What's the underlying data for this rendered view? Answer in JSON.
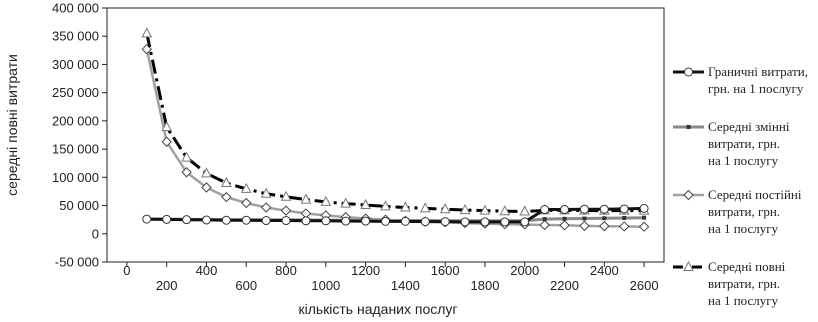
{
  "chart_data": {
    "type": "line",
    "title": "",
    "xlabel": "кількість наданих послуг",
    "ylabel": "середні повні витрати",
    "xlim": [
      -100,
      2700
    ],
    "ylim": [
      -50000,
      400000
    ],
    "x_ticks": [
      0,
      200,
      400,
      600,
      800,
      1000,
      1200,
      1400,
      1600,
      1800,
      2000,
      2200,
      2400,
      2600
    ],
    "x_tick_labels": [
      "0",
      "200",
      "400",
      "600",
      "800",
      "1000",
      "1200",
      "1400",
      "1600",
      "1800",
      "2000",
      "2200",
      "2400",
      "2600"
    ],
    "y_ticks": [
      -50000,
      0,
      50000,
      100000,
      150000,
      200000,
      250000,
      300000,
      350000,
      400000
    ],
    "y_tick_labels": [
      "-50 000",
      "0",
      "50 000",
      "100 000",
      "150 000",
      "200 000",
      "250 000",
      "300 000",
      "350 000",
      "400 000"
    ],
    "grid": false,
    "legend_position": "right",
    "series": [
      {
        "name": "Граничні витрати, грн. на 1 послугу",
        "style": "marginal",
        "x": [
          100,
          200,
          300,
          400,
          500,
          600,
          700,
          800,
          900,
          1000,
          1100,
          1200,
          1300,
          1400,
          1500,
          1600,
          1700,
          1800,
          1900,
          2000,
          2100,
          2200,
          2300,
          2400,
          2500,
          2600
        ],
        "y": [
          26000,
          25500,
          25000,
          24500,
          24000,
          24000,
          23500,
          23500,
          23000,
          23000,
          22500,
          22500,
          22000,
          22000,
          21500,
          21500,
          21000,
          21000,
          21000,
          21000,
          43000,
          43000,
          43500,
          43500,
          44000,
          45000
        ]
      },
      {
        "name": "Середні змінні витрати, грн. на 1 послугу",
        "style": "variable",
        "x": [
          100,
          200,
          300,
          400,
          500,
          600,
          700,
          800,
          900,
          1000,
          1100,
          1200,
          1300,
          1400,
          1500,
          1600,
          1700,
          1800,
          1900,
          2000,
          2100,
          2200,
          2300,
          2400,
          2500,
          2600
        ],
        "y": [
          26000,
          26000,
          25500,
          25500,
          25000,
          25000,
          24500,
          24500,
          24500,
          24000,
          24000,
          24000,
          23500,
          23500,
          23500,
          23000,
          23000,
          23000,
          23000,
          23000,
          26000,
          26500,
          27000,
          27500,
          28000,
          28500
        ]
      },
      {
        "name": "Середні постійні витрати, грн. на 1 послугу",
        "style": "fixed",
        "x": [
          100,
          200,
          300,
          400,
          500,
          600,
          700,
          800,
          900,
          1000,
          1100,
          1200,
          1300,
          1400,
          1500,
          1600,
          1700,
          1800,
          1900,
          2000,
          2100,
          2200,
          2300,
          2400,
          2500,
          2600
        ],
        "y": [
          327000,
          163000,
          109000,
          82000,
          65000,
          54500,
          46500,
          41000,
          36000,
          32500,
          29500,
          27000,
          25000,
          23000,
          21500,
          20500,
          19000,
          18000,
          17000,
          16500,
          15500,
          15000,
          14000,
          13500,
          13000,
          12500
        ]
      },
      {
        "name": "Середні повні витрати, грн. на 1 послугу",
        "style": "total",
        "x": [
          100,
          200,
          300,
          400,
          500,
          600,
          700,
          800,
          900,
          1000,
          1100,
          1200,
          1300,
          1400,
          1500,
          1600,
          1700,
          1800,
          1900,
          2000,
          2100,
          2200,
          2300,
          2400,
          2500,
          2600
        ],
        "y": [
          355000,
          189000,
          135000,
          107000,
          90000,
          79500,
          71000,
          65500,
          60500,
          56500,
          53500,
          51000,
          48500,
          46500,
          45000,
          43500,
          42000,
          41000,
          40000,
          39500,
          41500,
          41500,
          41000,
          41000,
          41000,
          41000
        ]
      }
    ],
    "legend": [
      {
        "lines": [
          "Граничні витрати,",
          "грн. на 1 послугу"
        ],
        "style": "marginal"
      },
      {
        "lines": [
          "Середні змінні",
          "витрати, грн.",
          "на 1 послугу"
        ],
        "style": "variable"
      },
      {
        "lines": [
          "Середні постійні",
          "витрати, грн.",
          "на 1 послугу"
        ],
        "style": "fixed"
      },
      {
        "lines": [
          "Середні повні",
          "витрати, грн.",
          "на 1 послугу"
        ],
        "style": "total"
      }
    ]
  }
}
